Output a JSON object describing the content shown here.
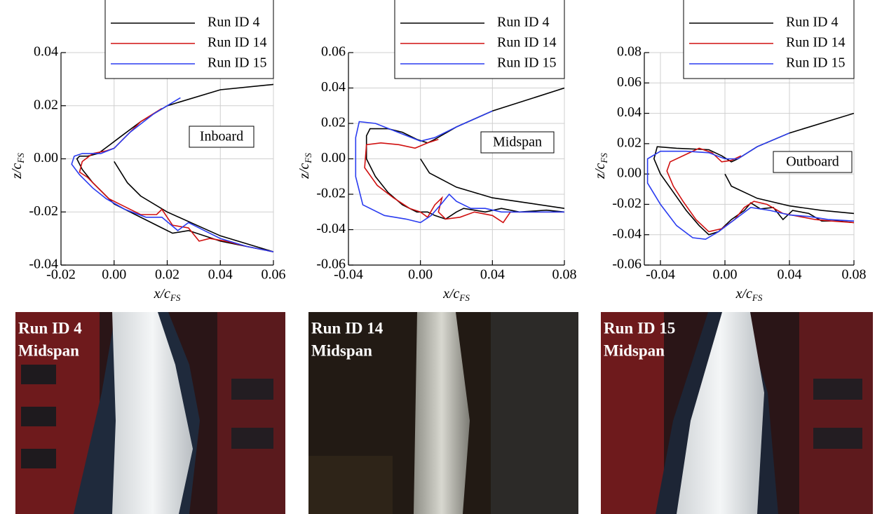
{
  "chart_data": [
    {
      "type": "line",
      "annotation": "Inboard",
      "xlabel": {
        "text": "x/c",
        "subscript": "FS"
      },
      "ylabel": {
        "text": "z/c",
        "subscript": "FS"
      },
      "xlim": [
        -0.02,
        0.06
      ],
      "ylim": [
        -0.04,
        0.04
      ],
      "xticks": [
        -0.02,
        {
          "value": 0,
          "label": "0.00"
        },
        0.02,
        0.04,
        0.06
      ],
      "yticks": [
        -0.04,
        -0.02,
        {
          "value": 0,
          "label": "0.00"
        },
        0.02,
        0.04
      ],
      "grid": true,
      "series": [
        {
          "name": "Run ID 4",
          "color": "#000000",
          "x": [
            0.06,
            0.04,
            0.02,
            0.01,
            0.002,
            -0.002,
            -0.006,
            -0.01,
            -0.013,
            -0.014,
            -0.012,
            -0.008,
            -0.004,
            0.0,
            0.006,
            0.012,
            0.018,
            0.022,
            0.028,
            0.034,
            0.04,
            0.05,
            0.06,
            null,
            0.0,
            0.005,
            0.01,
            0.02,
            0.04,
            0.06
          ],
          "values": [
            0.028,
            0.026,
            0.02,
            0.014,
            0.008,
            0.005,
            0.002,
            0.001,
            0.001,
            0.0,
            -0.004,
            -0.009,
            -0.013,
            -0.017,
            -0.02,
            -0.023,
            -0.026,
            -0.028,
            -0.027,
            -0.029,
            -0.031,
            -0.033,
            -0.035,
            null,
            -0.001,
            -0.009,
            -0.014,
            -0.02,
            -0.029,
            -0.035
          ]
        },
        {
          "name": "Run ID 14",
          "color": "#d01010",
          "x": [
            0.018,
            0.01,
            0.004,
            0.0,
            -0.003,
            -0.008,
            -0.012,
            -0.013,
            -0.01,
            -0.006,
            -0.002,
            0.004,
            0.01,
            0.016,
            0.018,
            0.022,
            0.028,
            0.032,
            0.036,
            0.042,
            0.05,
            0.06
          ],
          "values": [
            0.019,
            0.014,
            0.008,
            0.004,
            0.003,
            0.002,
            -0.001,
            -0.005,
            -0.007,
            -0.011,
            -0.015,
            -0.018,
            -0.021,
            -0.021,
            -0.019,
            -0.025,
            -0.026,
            -0.031,
            -0.03,
            -0.031,
            -0.033,
            -0.035
          ]
        },
        {
          "name": "Run ID 15",
          "color": "#2a3cf0",
          "x": [
            0.025,
            0.015,
            0.006,
            0.0,
            -0.005,
            -0.012,
            -0.015,
            -0.016,
            -0.013,
            -0.008,
            -0.003,
            0.004,
            0.012,
            0.018,
            0.024,
            0.028,
            0.034,
            0.04,
            0.05,
            0.06
          ],
          "values": [
            0.023,
            0.017,
            0.01,
            0.004,
            0.002,
            0.002,
            0.001,
            -0.002,
            -0.006,
            -0.011,
            -0.015,
            -0.019,
            -0.022,
            -0.022,
            -0.027,
            -0.024,
            -0.027,
            -0.03,
            -0.033,
            -0.035
          ]
        }
      ]
    },
    {
      "type": "line",
      "annotation": "Midspan",
      "xlabel": {
        "text": "x/c",
        "subscript": "FS"
      },
      "ylabel": {
        "text": "z/c",
        "subscript": "FS"
      },
      "xlim": [
        -0.04,
        0.08
      ],
      "ylim": [
        -0.06,
        0.06
      ],
      "xticks": [
        -0.04,
        {
          "value": 0,
          "label": "0.00"
        },
        0.04,
        0.08
      ],
      "yticks": [
        -0.06,
        -0.04,
        -0.02,
        {
          "value": 0,
          "label": "0.00"
        },
        0.02,
        0.04,
        0.06
      ],
      "grid": true,
      "series": [
        {
          "name": "Run ID 4",
          "color": "#000000",
          "x": [
            0.08,
            0.04,
            0.02,
            0.008,
            0.004,
            -0.002,
            -0.01,
            -0.018,
            -0.028,
            -0.03,
            -0.03,
            -0.025,
            -0.018,
            -0.01,
            -0.002,
            0.004,
            0.008,
            0.014,
            0.02,
            0.024,
            0.03,
            0.036,
            0.045,
            0.055,
            0.07,
            0.08,
            null,
            0.0,
            0.005,
            0.02,
            0.04,
            0.06,
            0.08
          ],
          "values": [
            0.04,
            0.027,
            0.018,
            0.011,
            0.009,
            0.011,
            0.015,
            0.017,
            0.017,
            0.013,
            0.0,
            -0.01,
            -0.019,
            -0.026,
            -0.03,
            -0.03,
            -0.032,
            -0.034,
            -0.03,
            -0.028,
            -0.029,
            -0.03,
            -0.028,
            -0.03,
            -0.029,
            -0.03,
            null,
            0.0,
            -0.008,
            -0.016,
            -0.022,
            -0.025,
            -0.028
          ]
        },
        {
          "name": "Run ID 14",
          "color": "#d01010",
          "x": [
            0.01,
            0.004,
            -0.003,
            -0.012,
            -0.022,
            -0.03,
            -0.031,
            -0.024,
            -0.015,
            -0.006,
            0.0,
            0.004,
            0.008,
            0.012,
            0.01,
            0.014,
            0.022,
            0.03,
            0.04,
            0.046,
            0.05,
            0.06,
            0.08
          ],
          "values": [
            0.011,
            0.009,
            0.006,
            0.008,
            0.009,
            0.008,
            -0.005,
            -0.015,
            -0.022,
            -0.028,
            -0.03,
            -0.033,
            -0.026,
            -0.022,
            -0.03,
            -0.034,
            -0.033,
            -0.03,
            -0.032,
            -0.036,
            -0.03,
            -0.03,
            -0.03
          ]
        },
        {
          "name": "Run ID 15",
          "color": "#2a3cf0",
          "x": [
            0.04,
            0.02,
            0.008,
            0.0,
            -0.01,
            -0.025,
            -0.034,
            -0.036,
            -0.036,
            -0.032,
            -0.02,
            -0.008,
            0.0,
            0.006,
            0.012,
            0.016,
            0.02,
            0.028,
            0.036,
            0.045,
            0.06,
            0.08
          ],
          "values": [
            0.027,
            0.018,
            0.012,
            0.01,
            0.014,
            0.02,
            0.021,
            0.012,
            -0.01,
            -0.026,
            -0.032,
            -0.034,
            -0.036,
            -0.032,
            -0.025,
            -0.02,
            -0.024,
            -0.028,
            -0.028,
            -0.03,
            -0.03,
            -0.03
          ]
        }
      ]
    },
    {
      "type": "line",
      "annotation": "Outboard",
      "xlabel": {
        "text": "x/c",
        "subscript": "FS"
      },
      "ylabel": {
        "text": "z/c",
        "subscript": "FS"
      },
      "xlim": [
        -0.05,
        0.08
      ],
      "ylim": [
        -0.06,
        0.08
      ],
      "xticks": [
        -0.04,
        {
          "value": 0,
          "label": "0.00"
        },
        0.04,
        0.08
      ],
      "yticks": [
        -0.06,
        -0.04,
        -0.02,
        {
          "value": 0,
          "label": "0.00"
        },
        0.02,
        0.04,
        0.06,
        0.08
      ],
      "grid": true,
      "series": [
        {
          "name": "Run ID 4",
          "color": "#000000",
          "x": [
            0.08,
            0.04,
            0.02,
            0.008,
            0.004,
            -0.002,
            -0.01,
            -0.03,
            -0.042,
            -0.044,
            -0.04,
            -0.032,
            -0.024,
            -0.016,
            -0.01,
            -0.004,
            0.004,
            0.012,
            0.016,
            0.022,
            0.03,
            0.036,
            0.042,
            0.052,
            0.06,
            0.07,
            0.08,
            null,
            0.0,
            0.004,
            0.02,
            0.04,
            0.06,
            0.08
          ],
          "values": [
            0.04,
            0.027,
            0.018,
            0.01,
            0.008,
            0.012,
            0.016,
            0.017,
            0.018,
            0.01,
            0.0,
            -0.012,
            -0.024,
            -0.034,
            -0.04,
            -0.038,
            -0.03,
            -0.024,
            -0.019,
            -0.023,
            -0.022,
            -0.03,
            -0.024,
            -0.026,
            -0.031,
            -0.031,
            -0.032,
            null,
            0.0,
            -0.008,
            -0.016,
            -0.021,
            -0.024,
            -0.026
          ]
        },
        {
          "name": "Run ID 14",
          "color": "#d01010",
          "x": [
            0.01,
            0.004,
            -0.002,
            -0.008,
            -0.016,
            -0.024,
            -0.034,
            -0.036,
            -0.032,
            -0.026,
            -0.018,
            -0.01,
            -0.002,
            0.006,
            0.012,
            0.018,
            0.026,
            0.036,
            0.046,
            0.056,
            0.066,
            0.08
          ],
          "values": [
            0.012,
            0.009,
            0.008,
            0.014,
            0.017,
            0.013,
            0.008,
            0.002,
            -0.008,
            -0.018,
            -0.03,
            -0.038,
            -0.036,
            -0.03,
            -0.022,
            -0.018,
            -0.02,
            -0.026,
            -0.028,
            -0.03,
            -0.031,
            -0.032
          ]
        },
        {
          "name": "Run ID 15",
          "color": "#2a3cf0",
          "x": [
            0.04,
            0.02,
            0.008,
            0.0,
            -0.01,
            -0.024,
            -0.04,
            -0.048,
            -0.048,
            -0.04,
            -0.03,
            -0.02,
            -0.012,
            -0.004,
            0.006,
            0.016,
            0.028,
            0.04,
            0.052,
            0.064,
            0.08
          ],
          "values": [
            0.027,
            0.018,
            0.01,
            0.01,
            0.014,
            0.015,
            0.015,
            0.01,
            -0.006,
            -0.02,
            -0.034,
            -0.042,
            -0.043,
            -0.038,
            -0.03,
            -0.022,
            -0.024,
            -0.027,
            -0.028,
            -0.03,
            -0.031
          ]
        }
      ]
    }
  ],
  "photos": [
    {
      "run": "Run ID 4",
      "location": "Midspan"
    },
    {
      "run": "Run ID 14",
      "location": "Midspan"
    },
    {
      "run": "Run ID 15",
      "location": "Midspan"
    }
  ]
}
